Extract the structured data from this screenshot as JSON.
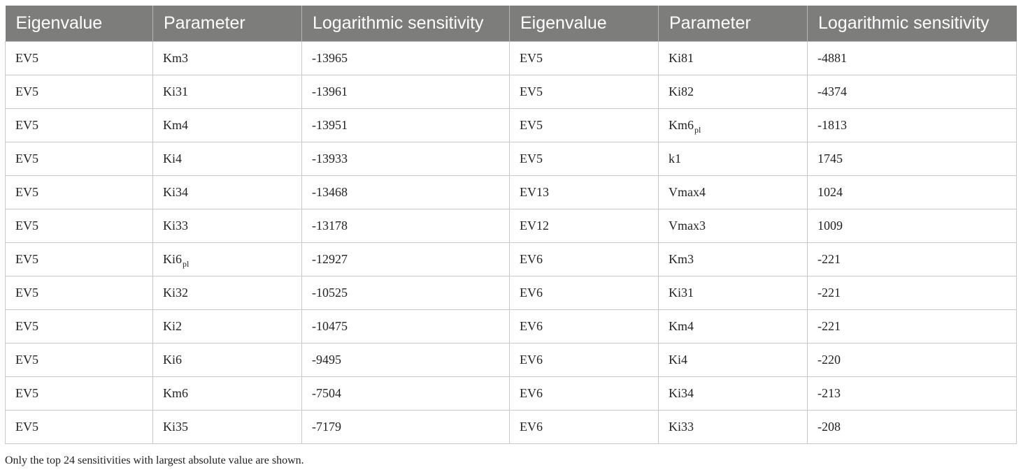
{
  "table": {
    "headers": [
      "Eigenvalue",
      "Parameter",
      "Logarithmic sensitivity",
      "Eigenvalue",
      "Parameter",
      "Logarithmic sensitivity"
    ],
    "rows": [
      {
        "ev1": "EV5",
        "p1": "Km3",
        "p1_sub": "",
        "s1": "-13965",
        "ev2": "EV5",
        "p2": "Ki81",
        "p2_sub": "",
        "s2": "-4881"
      },
      {
        "ev1": "EV5",
        "p1": "Ki31",
        "p1_sub": "",
        "s1": "-13961",
        "ev2": "EV5",
        "p2": "Ki82",
        "p2_sub": "",
        "s2": "-4374"
      },
      {
        "ev1": "EV5",
        "p1": "Km4",
        "p1_sub": "",
        "s1": "-13951",
        "ev2": "EV5",
        "p2": "Km6",
        "p2_sub": "pl",
        "s2": "-1813"
      },
      {
        "ev1": "EV5",
        "p1": "Ki4",
        "p1_sub": "",
        "s1": "-13933",
        "ev2": "EV5",
        "p2": "k1",
        "p2_sub": "",
        "s2": "1745"
      },
      {
        "ev1": "EV5",
        "p1": "Ki34",
        "p1_sub": "",
        "s1": "-13468",
        "ev2": "EV13",
        "p2": "Vmax4",
        "p2_sub": "",
        "s2": "1024"
      },
      {
        "ev1": "EV5",
        "p1": "Ki33",
        "p1_sub": "",
        "s1": "-13178",
        "ev2": "EV12",
        "p2": "Vmax3",
        "p2_sub": "",
        "s2": "1009"
      },
      {
        "ev1": "EV5",
        "p1": "Ki6",
        "p1_sub": "pl",
        "s1": "-12927",
        "ev2": "EV6",
        "p2": "Km3",
        "p2_sub": "",
        "s2": "-221"
      },
      {
        "ev1": "EV5",
        "p1": "Ki32",
        "p1_sub": "",
        "s1": "-10525",
        "ev2": "EV6",
        "p2": "Ki31",
        "p2_sub": "",
        "s2": "-221"
      },
      {
        "ev1": "EV5",
        "p1": "Ki2",
        "p1_sub": "",
        "s1": "-10475",
        "ev2": "EV6",
        "p2": "Km4",
        "p2_sub": "",
        "s2": "-221"
      },
      {
        "ev1": "EV5",
        "p1": "Ki6",
        "p1_sub": "",
        "s1": "-9495",
        "ev2": "EV6",
        "p2": "Ki4",
        "p2_sub": "",
        "s2": "-220"
      },
      {
        "ev1": "EV5",
        "p1": "Km6",
        "p1_sub": "",
        "s1": "-7504",
        "ev2": "EV6",
        "p2": "Ki34",
        "p2_sub": "",
        "s2": "-213"
      },
      {
        "ev1": "EV5",
        "p1": "Ki35",
        "p1_sub": "",
        "s1": "-7179",
        "ev2": "EV6",
        "p2": "Ki33",
        "p2_sub": "",
        "s2": "-208"
      }
    ]
  },
  "footnote": "Only the top 24 sensitivities with largest absolute value are shown.",
  "colors": {
    "header_bg": "#7d7e7c",
    "header_text": "#ffffff",
    "grid": "#c8c8c8"
  }
}
